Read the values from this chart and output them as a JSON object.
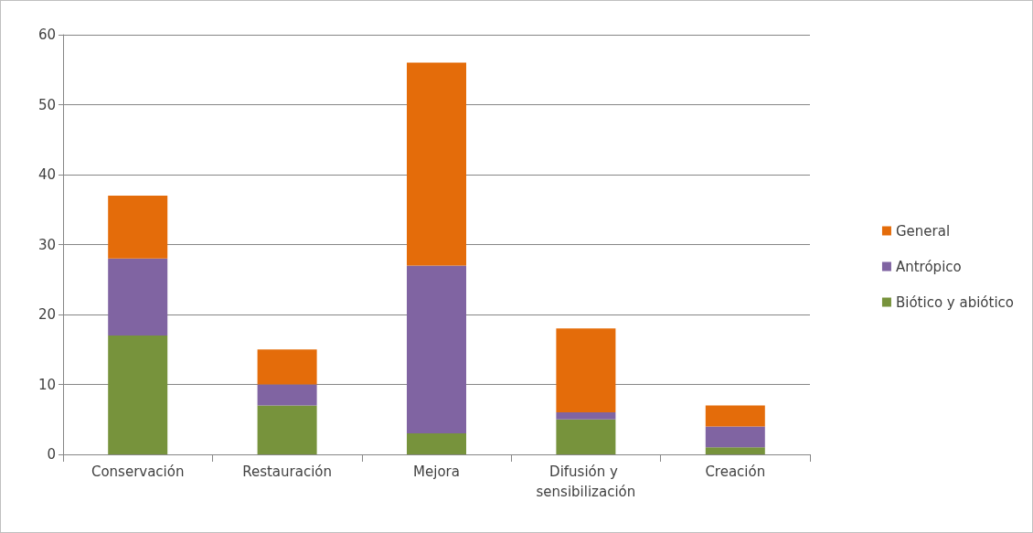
{
  "chart_data": {
    "type": "bar",
    "stacked": true,
    "categories": [
      "Conservación",
      "Restauración",
      "Mejora",
      "Difusión y sensibilización",
      "Creación"
    ],
    "series": [
      {
        "name": "Biótico y abiótico",
        "color": "#77933c",
        "values": [
          17,
          7,
          3,
          5,
          1
        ]
      },
      {
        "name": "Antrópico",
        "color": "#8064a2",
        "values": [
          11,
          3,
          24,
          1,
          3
        ]
      },
      {
        "name": "General",
        "color": "#e46c0a",
        "values": [
          9,
          5,
          29,
          12,
          3
        ]
      }
    ],
    "ylim": [
      0,
      60
    ],
    "yticks": [
      0,
      10,
      20,
      30,
      40,
      50,
      60
    ],
    "grid": "y",
    "legend": "right"
  }
}
